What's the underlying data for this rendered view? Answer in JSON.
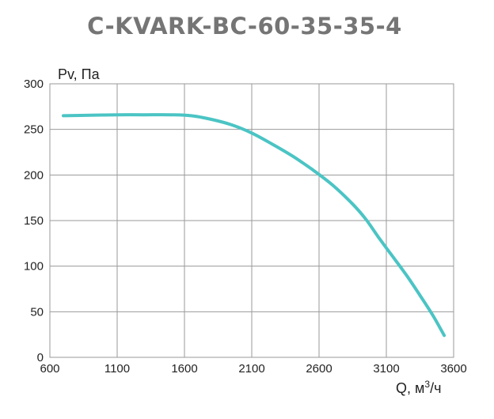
{
  "chart_data": {
    "type": "line",
    "title": "C-KVARK-BC-60-35-35-4",
    "ylabel": "Pv, Па",
    "xlabel_prefix": "Q, м",
    "xlabel_sup": "3",
    "xlabel_suffix": "/ч",
    "xlim": [
      600,
      3600
    ],
    "ylim": [
      0,
      300
    ],
    "grid": true,
    "x_ticks": [
      "600",
      "1100",
      "1600",
      "2100",
      "2600",
      "3100",
      "3600"
    ],
    "y_ticks": [
      "0",
      "50",
      "100",
      "150",
      "200",
      "250",
      "300"
    ],
    "series": [
      {
        "color": "#4bc4c4",
        "x": [
          700,
          900,
          1100,
          1300,
          1500,
          1650,
          1800,
          1950,
          2100,
          2250,
          2400,
          2550,
          2700,
          2850,
          2950,
          3050,
          3150,
          3250,
          3350,
          3450,
          3530
        ],
        "y": [
          265,
          265.5,
          266,
          266,
          266,
          265,
          261,
          255,
          246,
          234,
          221,
          206,
          189,
          168,
          151,
          130,
          110,
          90,
          68,
          45,
          24
        ]
      }
    ]
  }
}
